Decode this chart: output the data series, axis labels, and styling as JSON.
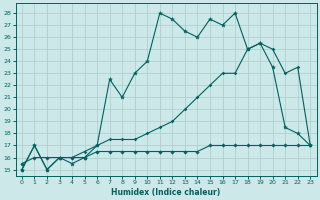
{
  "xlabel": "Humidex (Indice chaleur)",
  "bg_color": "#cce8e8",
  "grid_color": "#b0d0d0",
  "line_color": "#006060",
  "xlim": [
    -0.5,
    23.5
  ],
  "ylim": [
    14.5,
    28.8
  ],
  "xticks": [
    0,
    1,
    2,
    3,
    4,
    5,
    6,
    7,
    8,
    9,
    10,
    11,
    12,
    13,
    14,
    15,
    16,
    17,
    18,
    19,
    20,
    21,
    22,
    23
  ],
  "yticks": [
    15,
    16,
    17,
    18,
    19,
    20,
    21,
    22,
    23,
    24,
    25,
    26,
    27,
    28
  ],
  "line_upper_x": [
    0,
    1,
    2,
    3,
    4,
    5,
    6,
    7,
    8,
    9,
    10,
    11,
    12,
    13,
    14,
    15,
    16,
    17,
    18,
    19,
    20,
    21,
    22,
    23
  ],
  "line_upper_y": [
    15,
    17,
    15,
    16,
    15.5,
    16,
    17,
    22.5,
    21,
    23,
    24,
    28,
    27.5,
    26.5,
    26,
    27.5,
    27,
    28,
    25,
    25.5,
    23.5,
    18.5,
    18,
    17
  ],
  "line_mid_x": [
    0,
    1,
    2,
    3,
    4,
    5,
    6,
    7,
    8,
    9,
    10,
    11,
    12,
    13,
    14,
    15,
    16,
    17,
    18,
    19,
    20,
    21,
    22,
    23
  ],
  "line_mid_y": [
    15,
    17,
    15,
    16,
    16,
    16.5,
    17,
    17.5,
    17.5,
    17.5,
    18,
    18.5,
    19,
    20,
    21,
    22,
    23,
    23,
    25,
    25.5,
    25,
    23,
    23.5,
    17
  ],
  "line_low_x": [
    0,
    1,
    2,
    3,
    4,
    5,
    6,
    7,
    8,
    9,
    10,
    11,
    12,
    13,
    14,
    15,
    16,
    17,
    18,
    19,
    20,
    21,
    22,
    23
  ],
  "line_low_y": [
    15.5,
    16,
    16,
    16,
    16,
    16,
    16.5,
    16.5,
    16.5,
    16.5,
    16.5,
    16.5,
    16.5,
    16.5,
    16.5,
    17,
    17,
    17,
    17,
    17,
    17,
    17,
    17,
    17
  ]
}
